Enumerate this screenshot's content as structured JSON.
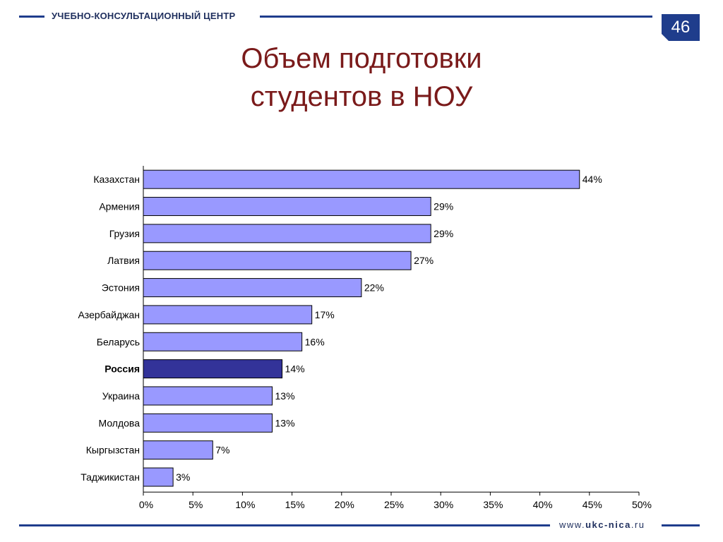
{
  "header": {
    "org_name": "УЧЕБНО-КОНСУЛЬТАЦИОННЫЙ ЦЕНТР",
    "page_number": "46",
    "title_line1": "Объем подготовки",
    "title_line2": "студентов в НОУ"
  },
  "footer": {
    "url_prefix": "www.",
    "url_domain": "ukc-nica",
    "url_suffix": ".ru"
  },
  "colors": {
    "bar": "#9999ff",
    "highlight_bar": "#333399",
    "brand": "#1f3d8c",
    "title": "#7a1a1a"
  },
  "chart_data": {
    "type": "bar",
    "orientation": "horizontal",
    "categories": [
      "Казахстан",
      "Армения",
      "Грузия",
      "Латвия",
      "Эстония",
      "Азербайджан",
      "Беларусь",
      "Россия",
      "Украина",
      "Молдова",
      "Кыргызстан",
      "Таджикистан"
    ],
    "values": [
      44,
      29,
      29,
      27,
      22,
      17,
      16,
      14,
      13,
      13,
      7,
      3
    ],
    "value_labels": [
      "44%",
      "29%",
      "29%",
      "27%",
      "22%",
      "17%",
      "16%",
      "14%",
      "13%",
      "13%",
      "7%",
      "3%"
    ],
    "highlight": "Россия",
    "xlim": [
      0,
      50
    ],
    "xticks": [
      "0%",
      "5%",
      "10%",
      "15%",
      "20%",
      "25%",
      "30%",
      "35%",
      "40%",
      "45%",
      "50%"
    ],
    "grid": false,
    "legend": "none"
  }
}
